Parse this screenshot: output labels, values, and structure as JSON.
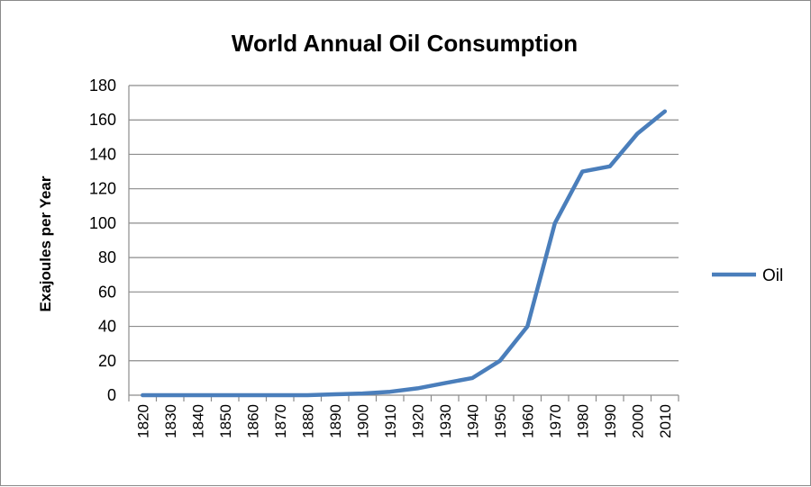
{
  "chart_data": {
    "type": "line",
    "title": "World Annual Oil Consumption",
    "xlabel": "",
    "ylabel": "Exajoules per Year",
    "ylim": [
      0,
      180
    ],
    "yticks": [
      "0",
      "20",
      "40",
      "60",
      "80",
      "100",
      "120",
      "140",
      "160",
      "180"
    ],
    "categories": [
      "1820",
      "1830",
      "1840",
      "1850",
      "1860",
      "1870",
      "1880",
      "1890",
      "1900",
      "1910",
      "1920",
      "1930",
      "1940",
      "1950",
      "1960",
      "1970",
      "1980",
      "1990",
      "2000",
      "2010"
    ],
    "grid": true,
    "legend_position": "right",
    "series": [
      {
        "name": "Oil",
        "color": "#4a7ebb",
        "values": [
          0,
          0,
          0,
          0,
          0,
          0,
          0,
          0.5,
          1,
          2,
          4,
          7,
          10,
          20,
          40,
          100,
          130,
          133,
          152,
          165
        ]
      }
    ]
  }
}
